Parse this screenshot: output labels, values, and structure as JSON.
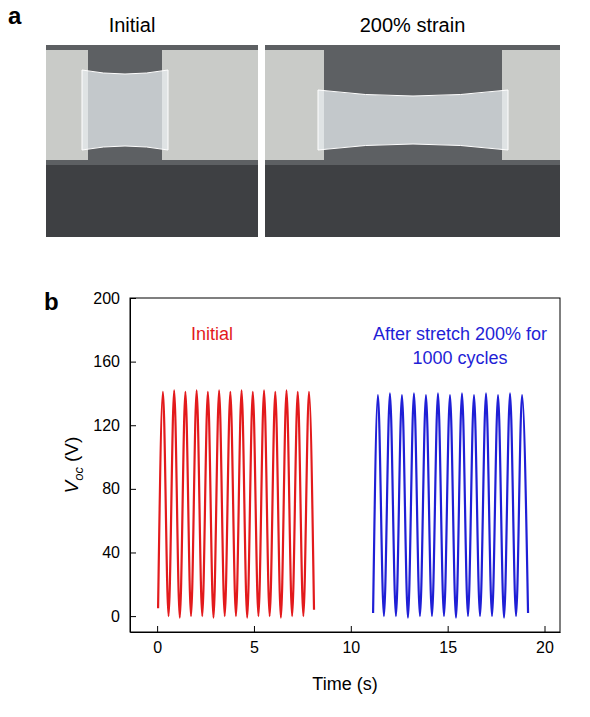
{
  "figure_panels": {
    "letter": "a",
    "captions": [
      "Initial",
      "200% strain"
    ]
  },
  "chart_data": {
    "type": "line",
    "panel_label": "b",
    "x_label": "Time (s)",
    "y_label": {
      "symbol": "V",
      "subscript": "oc",
      "unit": "(V)"
    },
    "xlim": [
      -1.4,
      20.8
    ],
    "xticks": [
      0,
      5,
      10,
      15,
      20
    ],
    "ylim": [
      -10,
      200
    ],
    "yticks": [
      0,
      40,
      80,
      120,
      160,
      200
    ],
    "grid": false,
    "annotations": [
      {
        "lines": [
          "Initial"
        ]
      },
      {
        "lines": [
          "After stretch 200% for",
          "1000 cycles"
        ]
      }
    ],
    "series": [
      {
        "name": "Initial",
        "color": "#e31a1c",
        "x": [
          0.05,
          0.3,
          0.59,
          0.88,
          1.17,
          1.46,
          1.75,
          2.04,
          2.33,
          2.62,
          2.91,
          3.2,
          3.49,
          3.78,
          4.07,
          4.36,
          4.65,
          4.94,
          5.23,
          5.52,
          5.81,
          6.1,
          6.39,
          6.68,
          6.97,
          7.26,
          7.55,
          7.84,
          8.1
        ],
        "values": [
          5,
          141,
          0,
          142,
          -1,
          141,
          0,
          142,
          0,
          141,
          -1,
          142,
          0,
          141,
          0,
          142,
          -1,
          141,
          0,
          142,
          0,
          141,
          -1,
          142,
          0,
          141,
          0,
          141,
          4
        ]
      },
      {
        "name": "After stretch 200% for 1000 cycles",
        "color": "#1f1fd6",
        "x": [
          11.15,
          11.4,
          11.71,
          12.02,
          12.33,
          12.64,
          12.95,
          13.26,
          13.57,
          13.88,
          14.19,
          14.5,
          14.81,
          15.12,
          15.43,
          15.74,
          16.05,
          16.36,
          16.67,
          16.98,
          17.29,
          17.6,
          17.91,
          18.22,
          18.53,
          18.84,
          19.15
        ],
        "values": [
          2,
          139,
          0,
          140,
          0,
          139,
          -1,
          140,
          0,
          139,
          0,
          140,
          0,
          139,
          -1,
          140,
          0,
          139,
          0,
          140,
          0,
          139,
          -1,
          140,
          0,
          139,
          2
        ]
      }
    ]
  }
}
